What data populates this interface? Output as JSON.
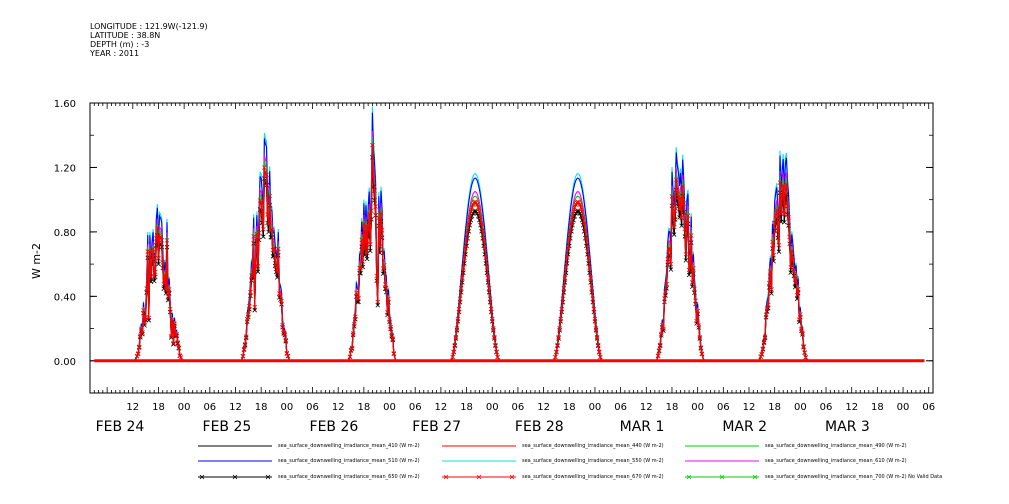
{
  "header": {
    "lines": [
      "LONGITUDE : 121.9W(-121.9)",
      "LATITUDE : 38.8N",
      "DEPTH (m) : -3",
      "YEAR : 2011"
    ]
  },
  "chart_data": {
    "type": "line",
    "title": "",
    "ylabel": "W m-2",
    "xlabel": "",
    "ylim": [
      -0.2,
      1.6
    ],
    "yticks": [
      0.0,
      0.4,
      0.8,
      1.2,
      1.6
    ],
    "ytick_labels": [
      "0.00",
      "0.40",
      "0.80",
      "1.20",
      "1.60"
    ],
    "xlim_hours": [
      -22,
      175
    ],
    "hour_ticks": [
      {
        "h": -12,
        "label": "12"
      },
      {
        "h": -6,
        "label": "18"
      },
      {
        "h": 0,
        "label": "00"
      },
      {
        "h": 6,
        "label": "06"
      },
      {
        "h": 12,
        "label": "12"
      },
      {
        "h": 18,
        "label": "18"
      },
      {
        "h": 24,
        "label": "00"
      },
      {
        "h": 30,
        "label": "06"
      },
      {
        "h": 36,
        "label": "12"
      },
      {
        "h": 42,
        "label": "18"
      },
      {
        "h": 48,
        "label": "00"
      },
      {
        "h": 54,
        "label": "06"
      },
      {
        "h": 60,
        "label": "12"
      },
      {
        "h": 66,
        "label": "18"
      },
      {
        "h": 72,
        "label": "00"
      },
      {
        "h": 78,
        "label": "06"
      },
      {
        "h": 84,
        "label": "12"
      },
      {
        "h": 90,
        "label": "18"
      },
      {
        "h": 96,
        "label": "00"
      },
      {
        "h": 102,
        "label": "06"
      },
      {
        "h": 108,
        "label": "12"
      },
      {
        "h": 114,
        "label": "18"
      },
      {
        "h": 120,
        "label": "00"
      },
      {
        "h": 126,
        "label": "06"
      },
      {
        "h": 132,
        "label": "12"
      },
      {
        "h": 138,
        "label": "18"
      },
      {
        "h": 144,
        "label": "00"
      },
      {
        "h": 150,
        "label": "06"
      },
      {
        "h": 156,
        "label": "12"
      },
      {
        "h": 162,
        "label": "18"
      },
      {
        "h": 168,
        "label": "00"
      },
      {
        "h": 174,
        "label": "06"
      }
    ],
    "day_labels": [
      {
        "h": -15,
        "label": "FEB 24"
      },
      {
        "h": 10,
        "label": "FEB 25"
      },
      {
        "h": 35,
        "label": "FEB 26"
      },
      {
        "h": 59,
        "label": "FEB 27"
      },
      {
        "h": 83,
        "label": "FEB 28"
      },
      {
        "h": 107,
        "label": "MAR  1"
      },
      {
        "h": 131,
        "label": "MAR  2"
      },
      {
        "h": 155,
        "label": "MAR  3"
      }
    ],
    "daily_cycles": [
      {
        "center_h": -6,
        "peak_black": 0.66,
        "cloudy": true
      },
      {
        "center_h": 19,
        "peak_black": 1.0,
        "cloudy": true
      },
      {
        "center_h": 44,
        "peak_black": 0.93,
        "cloudy": true
      },
      {
        "center_h": 68,
        "peak_black": 0.93,
        "cloudy": false
      },
      {
        "center_h": 92,
        "peak_black": 0.93,
        "cloudy": false
      },
      {
        "center_h": 116,
        "peak_black": 0.93,
        "cloudy": true
      },
      {
        "center_h": 140,
        "peak_black": 0.9,
        "cloudy": true
      }
    ],
    "series": [
      {
        "name": "sea_surface_downwelling_irradiance_mean_410 (W m-2)",
        "color": "#000000",
        "scale": 1.0,
        "marker": "none"
      },
      {
        "name": "sea_surface_downwelling_irradiance_mean_440 (W m-2)",
        "color": "#ff0000",
        "scale": 1.05,
        "marker": "none"
      },
      {
        "name": "sea_surface_downwelling_irradiance_mean_490 (W m-2)",
        "color": "#00cc00",
        "scale": 1.1,
        "marker": "none"
      },
      {
        "name": "sea_surface_downwelling_irradiance_mean_510 (W m-2)",
        "color": "#0000ff",
        "scale": 1.22,
        "marker": "none"
      },
      {
        "name": "sea_surface_downwelling_irradiance_mean_550 (W m-2)",
        "color": "#00e5e5",
        "scale": 1.25,
        "marker": "none"
      },
      {
        "name": "sea_surface_downwelling_irradiance_mean_610 (W m-2)",
        "color": "#ff00ff",
        "scale": 1.13,
        "marker": "none"
      },
      {
        "name": "sea_surface_downwelling_irradiance_mean_650 (W m-2)",
        "color": "#000000",
        "scale": 1.0,
        "marker": "x"
      },
      {
        "name": "sea_surface_downwelling_irradiance_mean_670 (W m-2)",
        "color": "#ff0000",
        "scale": 1.06,
        "marker": "x"
      },
      {
        "name": "sea_surface_downwelling_irradiance_mean_700 (W m-2) No Valid Data",
        "color": "#00cc00",
        "scale": 0,
        "marker": "x"
      }
    ]
  }
}
